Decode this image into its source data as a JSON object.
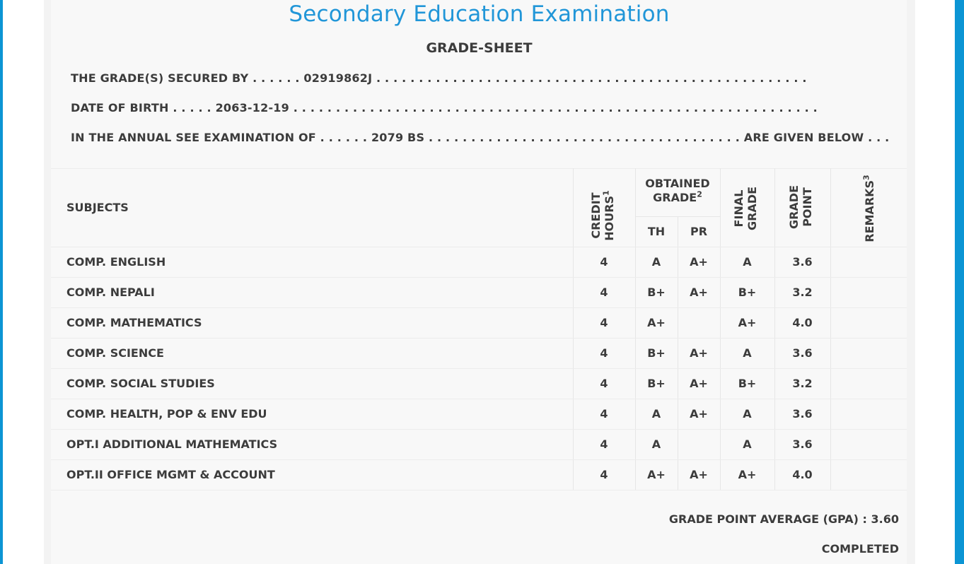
{
  "title": "Secondary Education Examination",
  "subtitle": "GRADE-SHEET",
  "info": {
    "line1": "THE GRADE(S) SECURED BY . . . . . . 02919862J . . . . . . . . . . . . . . . . . . . . . . . . . . . . . . . . . . . . . . . . . . . . . . . . . . .",
    "line2": "DATE OF BIRTH . . . . . 2063-12-19 . . . . . . . . . . . . . . . . . . . . . . . . . . . . . . . . . . . . . . . . . . . . . . . . . . . . . . . . . . . . . .",
    "line3": "IN THE ANNUAL SEE EXAMINATION OF . . . . . . 2079 BS . . . . . . . . . . . . . . . . . . . . . . . . . . . . . . . . . . . . . ARE GIVEN BELOW . . ."
  },
  "table_header": {
    "subjects": "SUBJECTS",
    "credit_line1": "CREDIT",
    "credit_line2": "HOURS",
    "credit_sup": "1",
    "obtained_line1": "OBTAINED",
    "obtained_line2": "GRADE",
    "obtained_sup": "2",
    "th": "TH",
    "pr": "PR",
    "final_line1": "FINAL",
    "final_line2": "GRADE",
    "gp_line1": "GRADE",
    "gp_line2": "POINT",
    "remarks": "REMARKS",
    "remarks_sup": "3"
  },
  "rows": [
    {
      "subject": "COMP. ENGLISH",
      "credit": "4",
      "th": "A",
      "pr": "A+",
      "final": "A",
      "gp": "3.6",
      "remarks": ""
    },
    {
      "subject": "COMP. NEPALI",
      "credit": "4",
      "th": "B+",
      "pr": "A+",
      "final": "B+",
      "gp": "3.2",
      "remarks": ""
    },
    {
      "subject": "COMP. MATHEMATICS",
      "credit": "4",
      "th": "A+",
      "pr": "",
      "final": "A+",
      "gp": "4.0",
      "remarks": ""
    },
    {
      "subject": "COMP. SCIENCE",
      "credit": "4",
      "th": "B+",
      "pr": "A+",
      "final": "A",
      "gp": "3.6",
      "remarks": ""
    },
    {
      "subject": "COMP. SOCIAL STUDIES",
      "credit": "4",
      "th": "B+",
      "pr": "A+",
      "final": "B+",
      "gp": "3.2",
      "remarks": ""
    },
    {
      "subject": "COMP. HEALTH, POP & ENV EDU",
      "credit": "4",
      "th": "A",
      "pr": "A+",
      "final": "A",
      "gp": "3.6",
      "remarks": ""
    },
    {
      "subject": "OPT.I ADDITIONAL MATHEMATICS",
      "credit": "4",
      "th": "A",
      "pr": "",
      "final": "A",
      "gp": "3.6",
      "remarks": ""
    },
    {
      "subject": "OPT.II OFFICE MGMT & ACCOUNT",
      "credit": "4",
      "th": "A+",
      "pr": "A+",
      "final": "A+",
      "gp": "4.0",
      "remarks": ""
    }
  ],
  "footer": {
    "gpa": "GRADE POINT AVERAGE (GPA) : 3.60",
    "status": "COMPLETED"
  },
  "colors": {
    "accent_blue": "#2196d8",
    "frame_blue": "#0c95d4",
    "text": "#3c3c3c"
  }
}
